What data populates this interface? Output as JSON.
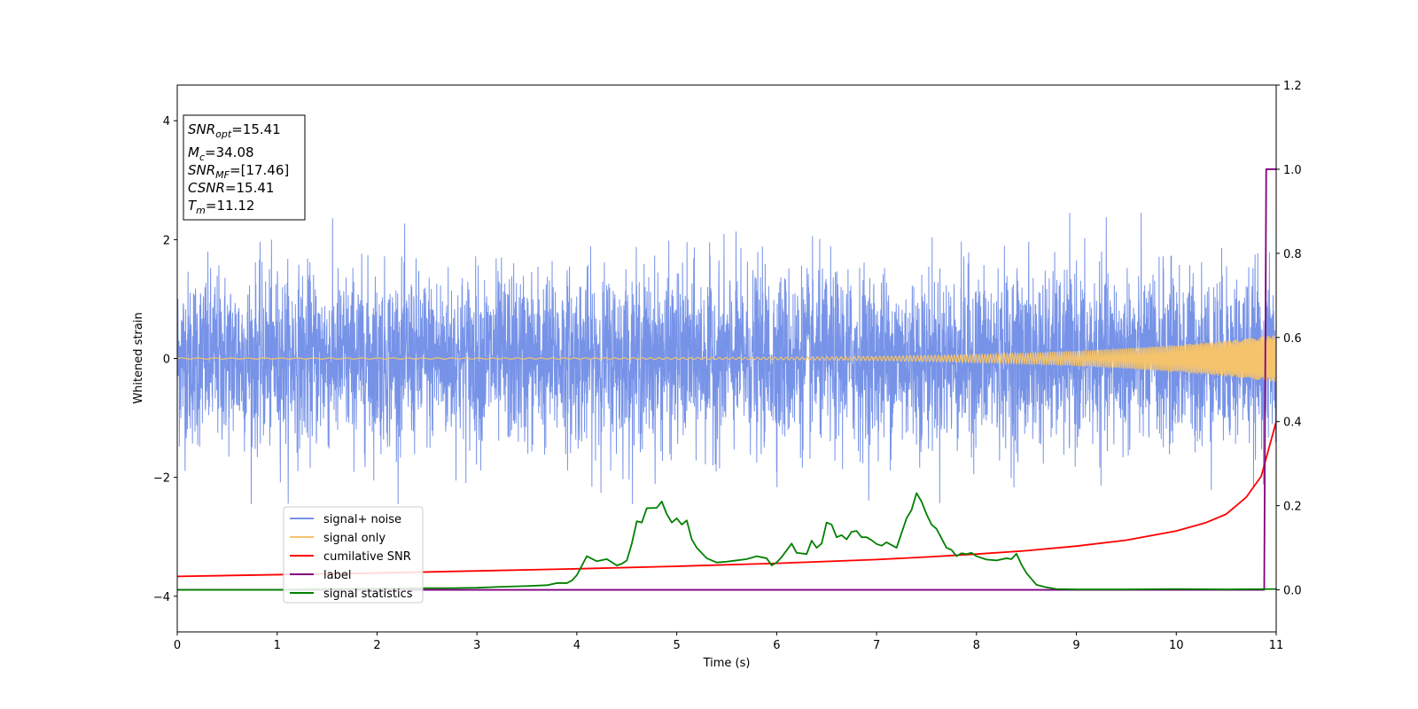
{
  "chart_data": {
    "type": "line",
    "xlabel": "Time (s)",
    "ylabel_left": "Whitened strain",
    "ylabel_right": "",
    "xlim": [
      0,
      11
    ],
    "ylim_left": [
      -4.6,
      4.6
    ],
    "ylim_right": [
      -0.1,
      1.2
    ],
    "x_ticks": [
      0,
      1,
      2,
      3,
      4,
      5,
      6,
      7,
      8,
      9,
      10,
      11
    ],
    "y_left_ticks": [
      4,
      2,
      0,
      -2,
      -4
    ],
    "y_left_tick_labels": [
      "4",
      "2",
      "0",
      "−2",
      "−4"
    ],
    "y_right_ticks": [
      1.2,
      1.0,
      0.8,
      0.6,
      0.4,
      0.2,
      0.0
    ],
    "y_right_tick_labels": [
      "1.2",
      "1.0",
      "0.8",
      "0.6",
      "0.4",
      "0.2",
      "0.0"
    ],
    "grid": false,
    "legend_placement": "lower-left",
    "info_box": {
      "lines": [
        {
          "var": "SNR",
          "sub": "opt",
          "value": "=15.41"
        },
        {
          "var": "M",
          "sub": "c",
          "value": "=34.08"
        },
        {
          "var": "SNR",
          "sub": "MF",
          "value": "=[17.46]"
        },
        {
          "var": "CSNR",
          "sub": "",
          "value": "=15.41"
        },
        {
          "var": "T",
          "sub": "m",
          "value": "=11.12"
        }
      ]
    },
    "series": [
      {
        "name": "signal+ noise",
        "color": "#7793e8",
        "axis": "left",
        "description_values": {
          "approx_range": [
            -2.5,
            2.5
          ],
          "kind": "white noise plus chirp"
        }
      },
      {
        "name": "signal only",
        "color": "#f5c36b",
        "axis": "left",
        "chirp": {
          "amplitude_start": 0.01,
          "amplitude_end": 0.4,
          "t_end": 11
        }
      },
      {
        "name": "cumilative SNR",
        "color": "#ff0000",
        "axis": "right",
        "x": [
          0,
          1,
          2,
          3,
          4,
          5,
          6,
          7,
          7.5,
          8,
          8.5,
          9,
          9.5,
          10,
          10.3,
          10.5,
          10.7,
          10.85,
          11
        ],
        "y": [
          0.032,
          0.036,
          0.04,
          0.045,
          0.05,
          0.056,
          0.063,
          0.072,
          0.078,
          0.085,
          0.093,
          0.104,
          0.118,
          0.14,
          0.16,
          0.18,
          0.22,
          0.27,
          0.4
        ]
      },
      {
        "name": "label",
        "color": "#800080",
        "axis": "right",
        "x": [
          0,
          10.88,
          10.9,
          10.95,
          11
        ],
        "y": [
          0,
          0,
          1.0,
          1.0,
          1.0
        ]
      },
      {
        "name": "signal statistics",
        "color": "#008000",
        "axis": "right",
        "x": [
          0,
          0.3,
          0.6,
          1,
          1.5,
          2,
          2.5,
          2.7,
          3,
          3.2,
          3.5,
          3.7,
          3.8,
          3.9,
          3.95,
          4,
          4.1,
          4.2,
          4.3,
          4.4,
          4.45,
          4.5,
          4.55,
          4.6,
          4.65,
          4.7,
          4.8,
          4.85,
          4.9,
          4.95,
          5.0,
          5.05,
          5.1,
          5.15,
          5.2,
          5.3,
          5.4,
          5.5,
          5.6,
          5.7,
          5.8,
          5.9,
          5.95,
          6.0,
          6.05,
          6.1,
          6.15,
          6.2,
          6.3,
          6.35,
          6.4,
          6.45,
          6.5,
          6.55,
          6.6,
          6.65,
          6.7,
          6.75,
          6.8,
          6.85,
          6.9,
          6.95,
          7.0,
          7.05,
          7.1,
          7.2,
          7.3,
          7.35,
          7.4,
          7.45,
          7.5,
          7.55,
          7.6,
          7.7,
          7.75,
          7.8,
          7.85,
          7.9,
          7.95,
          8.0,
          8.1,
          8.2,
          8.3,
          8.35,
          8.4,
          8.45,
          8.5,
          8.6,
          8.7,
          8.8,
          9.0,
          9.5,
          10.0,
          10.5,
          11.0
        ],
        "y": [
          0.0,
          0.0,
          0.0,
          0.0,
          0.002,
          0.003,
          0.004,
          0.004,
          0.005,
          0.007,
          0.009,
          0.011,
          0.016,
          0.016,
          0.022,
          0.035,
          0.08,
          0.068,
          0.073,
          0.058,
          0.062,
          0.07,
          0.11,
          0.163,
          0.16,
          0.194,
          0.195,
          0.21,
          0.18,
          0.16,
          0.17,
          0.155,
          0.165,
          0.12,
          0.1,
          0.075,
          0.065,
          0.067,
          0.07,
          0.073,
          0.08,
          0.075,
          0.058,
          0.065,
          0.078,
          0.094,
          0.11,
          0.088,
          0.085,
          0.117,
          0.1,
          0.11,
          0.16,
          0.155,
          0.125,
          0.13,
          0.12,
          0.138,
          0.14,
          0.125,
          0.125,
          0.118,
          0.109,
          0.105,
          0.113,
          0.1,
          0.17,
          0.19,
          0.23,
          0.21,
          0.18,
          0.155,
          0.145,
          0.1,
          0.095,
          0.08,
          0.087,
          0.085,
          0.088,
          0.08,
          0.072,
          0.07,
          0.075,
          0.073,
          0.086,
          0.06,
          0.04,
          0.012,
          0.006,
          0.002,
          0.001,
          0.001,
          0.002,
          0.001,
          0.002
        ]
      }
    ]
  }
}
